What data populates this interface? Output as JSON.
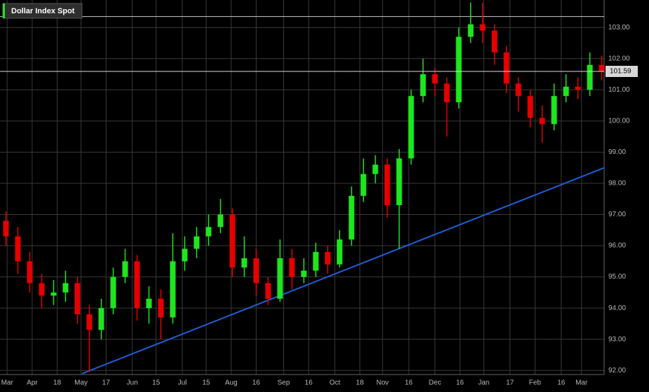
{
  "chart_data": {
    "type": "candlestick",
    "series": [
      {
        "name": "Dollar Index Spot",
        "up_color": "#1ee61e",
        "down_color": "#e60000",
        "x": [
          0.5,
          1.5,
          2.5,
          3.5,
          4.5,
          5.5,
          6.5,
          7.5,
          8.5,
          9.5,
          10.5,
          11.5,
          12.5,
          13.5,
          14.5,
          15.5,
          16.5,
          17.5,
          18.5,
          19.5,
          20.5,
          21.5,
          22.5,
          23.5,
          24.5,
          25.5,
          26.5,
          27.5,
          28.5,
          29.5,
          30.5,
          31.5,
          32.5,
          33.5,
          34.5,
          35.5,
          36.5,
          37.5,
          38.5,
          39.5,
          40.5,
          41.5,
          42.5,
          43.5,
          44.5,
          45.5,
          46.5,
          47.5,
          48.5,
          49.5,
          50.5
        ],
        "open": [
          96.8,
          96.3,
          95.5,
          94.8,
          94.4,
          94.5,
          94.8,
          93.8,
          93.3,
          94.0,
          95.0,
          95.5,
          94.0,
          94.3,
          93.7,
          95.5,
          95.9,
          96.3,
          96.6,
          97.0,
          95.3,
          95.6,
          94.8,
          94.3,
          95.6,
          95.0,
          95.2,
          95.8,
          95.4,
          96.2,
          97.6,
          98.3,
          98.6,
          97.3,
          98.8,
          100.8,
          101.5,
          101.2,
          100.6,
          102.7,
          103.1,
          102.9,
          102.2,
          101.2,
          100.8,
          100.1,
          99.9,
          100.8,
          101.1,
          101.0,
          101.8
        ],
        "high": [
          97.1,
          96.6,
          95.8,
          95.1,
          94.9,
          95.2,
          95.0,
          94.1,
          94.3,
          95.3,
          95.9,
          95.7,
          94.7,
          94.6,
          96.4,
          96.3,
          96.6,
          97.0,
          97.5,
          97.2,
          96.3,
          95.9,
          95.0,
          96.2,
          95.9,
          95.6,
          96.1,
          96.0,
          96.5,
          97.9,
          98.8,
          98.9,
          98.8,
          99.1,
          101.0,
          102.0,
          101.7,
          101.4,
          103.0,
          103.8,
          103.8,
          103.1,
          102.4,
          101.4,
          101.0,
          100.5,
          101.2,
          101.5,
          101.4,
          102.2,
          102.1
        ],
        "low": [
          96.0,
          95.1,
          94.5,
          94.0,
          94.1,
          94.2,
          93.5,
          91.95,
          93.0,
          93.8,
          94.8,
          93.6,
          93.5,
          93.0,
          93.5,
          95.2,
          95.6,
          96.0,
          96.4,
          95.0,
          95.0,
          94.4,
          94.1,
          94.2,
          94.6,
          94.8,
          95.0,
          95.1,
          95.3,
          96.0,
          97.4,
          98.0,
          96.9,
          95.9,
          98.6,
          100.6,
          100.8,
          99.5,
          100.4,
          102.5,
          102.5,
          101.8,
          100.9,
          100.3,
          99.8,
          99.3,
          99.7,
          100.6,
          100.7,
          100.8,
          101.3
        ],
        "close": [
          96.3,
          95.5,
          94.8,
          94.4,
          94.5,
          94.8,
          93.8,
          93.3,
          94.0,
          95.0,
          95.5,
          94.0,
          94.3,
          93.7,
          95.5,
          95.9,
          96.3,
          96.6,
          97.0,
          95.3,
          95.6,
          94.8,
          94.3,
          95.6,
          95.0,
          95.2,
          95.8,
          95.4,
          96.2,
          97.6,
          98.3,
          98.6,
          97.3,
          98.8,
          100.8,
          101.5,
          101.2,
          100.6,
          102.7,
          103.1,
          102.9,
          102.2,
          101.2,
          100.8,
          100.1,
          99.9,
          100.8,
          101.1,
          101.0,
          101.8,
          101.59
        ]
      }
    ],
    "last_price": 101.59,
    "reference_line": 103.35,
    "trendline": {
      "color": "#1f5fd6",
      "x": [
        6.9,
        50.7
      ],
      "y": [
        91.9,
        98.5
      ]
    },
    "xlim": [
      0,
      50.7
    ],
    "ylim": [
      91.87,
      103.88
    ],
    "xticks": [
      {
        "value": 0.6,
        "label": "Mar"
      },
      {
        "value": 2.7,
        "label": "Apr"
      },
      {
        "value": 4.8,
        "label": "18"
      },
      {
        "value": 6.8,
        "label": "May"
      },
      {
        "value": 8.9,
        "label": "17"
      },
      {
        "value": 11.1,
        "label": "Jun"
      },
      {
        "value": 13.1,
        "label": "15"
      },
      {
        "value": 15.3,
        "label": "Jul"
      },
      {
        "value": 17.3,
        "label": "15"
      },
      {
        "value": 19.4,
        "label": "Aug"
      },
      {
        "value": 21.5,
        "label": "16"
      },
      {
        "value": 23.8,
        "label": "Sep"
      },
      {
        "value": 25.9,
        "label": "16"
      },
      {
        "value": 28.1,
        "label": "Oct"
      },
      {
        "value": 30.2,
        "label": "18"
      },
      {
        "value": 32.1,
        "label": "Nov"
      },
      {
        "value": 34.3,
        "label": "16"
      },
      {
        "value": 36.5,
        "label": "Dec"
      },
      {
        "value": 38.6,
        "label": "16"
      },
      {
        "value": 40.6,
        "label": "Jan"
      },
      {
        "value": 42.8,
        "label": "17"
      },
      {
        "value": 44.9,
        "label": "Feb"
      },
      {
        "value": 47.1,
        "label": "16"
      },
      {
        "value": 48.8,
        "label": "Mar"
      }
    ],
    "yticks": [
      {
        "value": 92,
        "label": "92.00"
      },
      {
        "value": 93,
        "label": "93.00"
      },
      {
        "value": 94,
        "label": "94.00"
      },
      {
        "value": 95,
        "label": "95.00"
      },
      {
        "value": 96,
        "label": "96.00"
      },
      {
        "value": 97,
        "label": "97.00"
      },
      {
        "value": 98,
        "label": "98.00"
      },
      {
        "value": 99,
        "label": "99.00"
      },
      {
        "value": 100,
        "label": "100.00"
      },
      {
        "value": 101,
        "label": "101.00"
      },
      {
        "value": 102,
        "label": "102.00"
      },
      {
        "value": 103,
        "label": "103.00"
      }
    ],
    "grid": true
  }
}
